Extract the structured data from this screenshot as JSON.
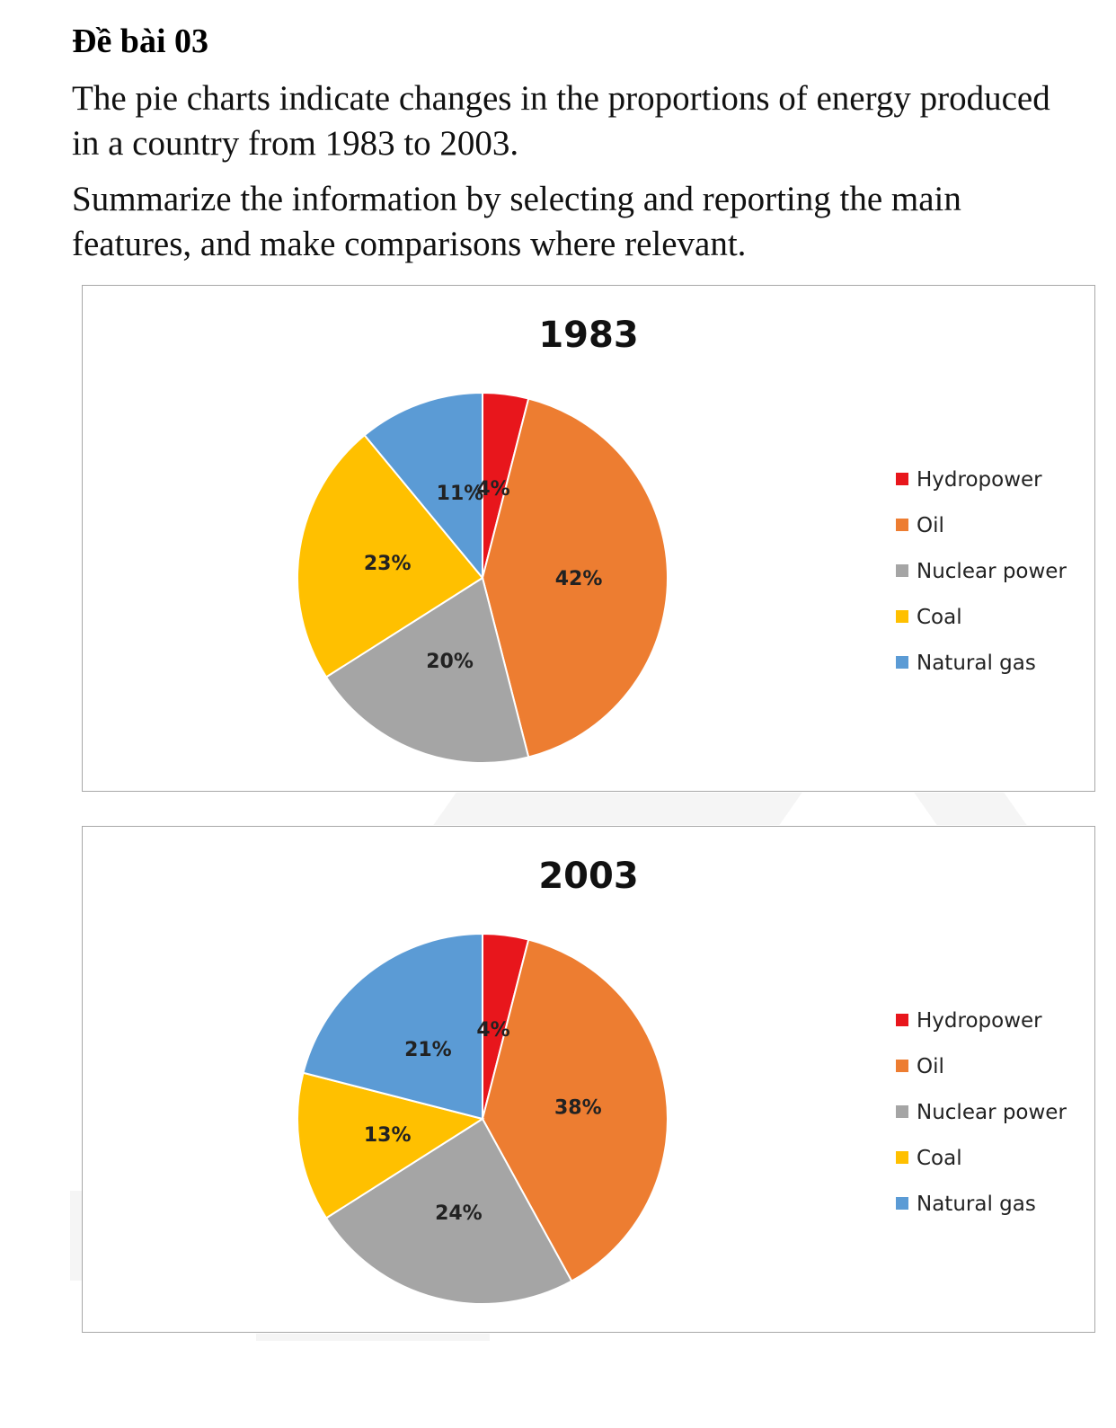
{
  "heading": "Đề bài 03",
  "intro": "The pie charts indicate changes in the proportions of energy produced in a country from 1983 to 2003.",
  "task": "Summarize the information by selecting and reporting the main features, and make comparisons where relevant.",
  "colors": {
    "Hydropower": "#e8161c",
    "Oil": "#ed7d31",
    "Nuclear power": "#a5a5a5",
    "Coal": "#ffc000",
    "Natural gas": "#5b9bd5"
  },
  "chart_data": [
    {
      "type": "pie",
      "title": "1983",
      "legend_position": "right",
      "labels": [
        "Hydropower",
        "Oil",
        "Nuclear power",
        "Coal",
        "Natural gas"
      ],
      "values": [
        4,
        42,
        20,
        23,
        11
      ],
      "value_labels": [
        "4%",
        "42%",
        "20%",
        "23%",
        "11%"
      ]
    },
    {
      "type": "pie",
      "title": "2003",
      "legend_position": "right",
      "labels": [
        "Hydropower",
        "Oil",
        "Nuclear power",
        "Coal",
        "Natural gas"
      ],
      "values": [
        4,
        38,
        24,
        13,
        21
      ],
      "value_labels": [
        "4%",
        "38%",
        "24%",
        "13%",
        "21%"
      ]
    }
  ]
}
